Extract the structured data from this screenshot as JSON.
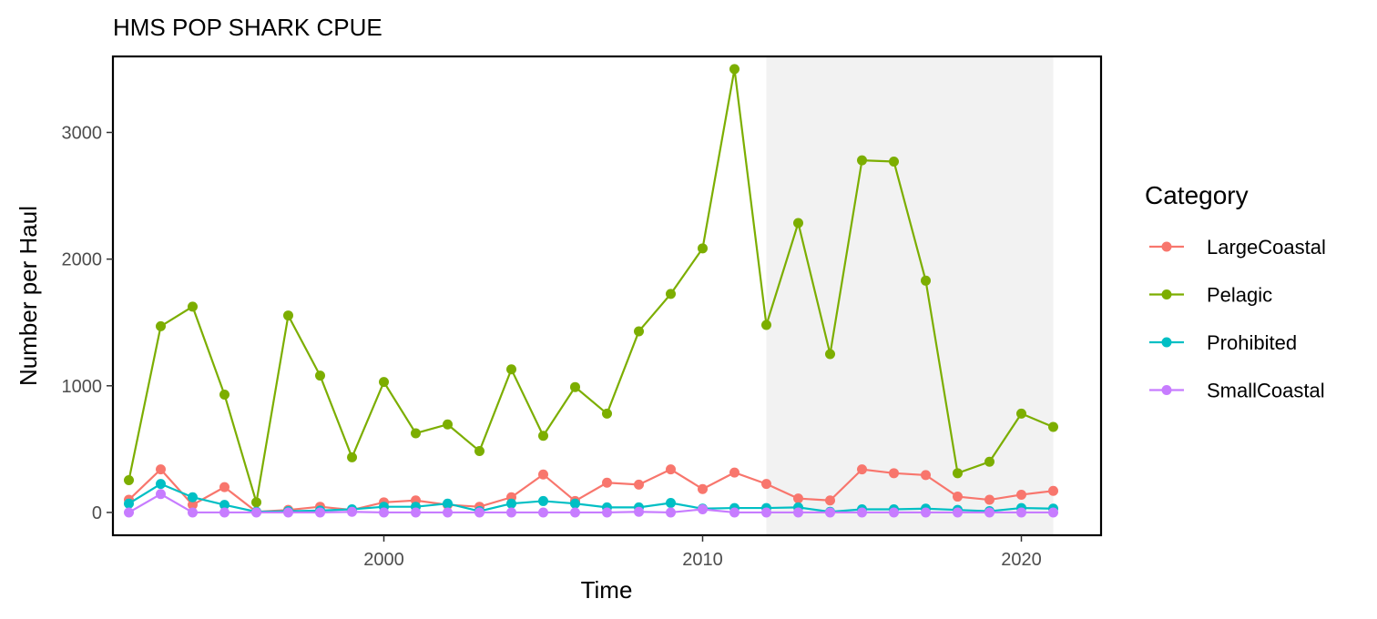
{
  "chart_data": {
    "type": "line",
    "title": "HMS POP SHARK CPUE",
    "xlabel": "Time",
    "ylabel": "Number per Haul",
    "xlim": [
      1991.5,
      2022.5
    ],
    "ylim": [
      -180,
      3600
    ],
    "x_ticks": [
      2000,
      2010,
      2020
    ],
    "y_ticks": [
      0,
      1000,
      2000,
      3000
    ],
    "grid": false,
    "shaded_region": {
      "x_start": 2012,
      "x_end": 2021,
      "color": "#f2f2f2"
    },
    "legend": {
      "title": "Category",
      "position": "right"
    },
    "x": [
      1992,
      1993,
      1994,
      1995,
      1996,
      1997,
      1998,
      1999,
      2000,
      2001,
      2002,
      2003,
      2004,
      2005,
      2006,
      2007,
      2008,
      2009,
      2010,
      2011,
      2012,
      2013,
      2014,
      2015,
      2016,
      2017,
      2018,
      2019,
      2020,
      2021
    ],
    "series": [
      {
        "name": "LargeCoastal",
        "color": "#F8766D",
        "values": [
          100,
          340,
          60,
          200,
          5,
          20,
          45,
          20,
          80,
          95,
          60,
          45,
          120,
          300,
          90,
          235,
          220,
          340,
          185,
          315,
          225,
          110,
          95,
          340,
          310,
          295,
          125,
          100,
          140,
          170
        ]
      },
      {
        "name": "Pelagic",
        "color": "#7CAE00",
        "values": [
          255,
          1470,
          1625,
          930,
          80,
          1555,
          1080,
          435,
          1030,
          625,
          695,
          485,
          1130,
          605,
          990,
          780,
          1430,
          1725,
          2085,
          3500,
          1480,
          2285,
          1250,
          2780,
          2770,
          1830,
          310,
          400,
          780,
          675
        ]
      },
      {
        "name": "Prohibited",
        "color": "#00BFC4",
        "values": [
          70,
          225,
          120,
          60,
          5,
          10,
          15,
          25,
          45,
          45,
          70,
          10,
          70,
          90,
          70,
          40,
          40,
          75,
          30,
          35,
          35,
          40,
          5,
          25,
          25,
          30,
          20,
          10,
          35,
          30
        ]
      },
      {
        "name": "SmallCoastal",
        "color": "#C77CFF",
        "values": [
          0,
          145,
          0,
          0,
          0,
          0,
          0,
          5,
          0,
          0,
          0,
          0,
          0,
          0,
          0,
          0,
          5,
          0,
          25,
          0,
          0,
          0,
          0,
          0,
          0,
          0,
          0,
          0,
          0,
          0
        ]
      }
    ]
  }
}
